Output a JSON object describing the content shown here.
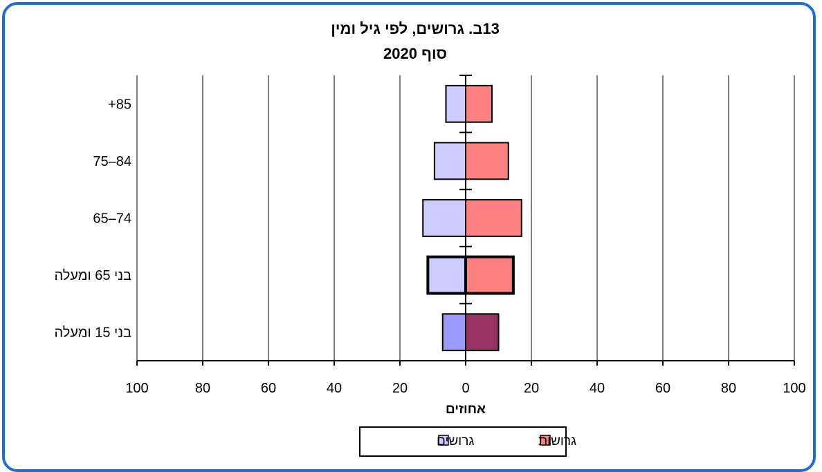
{
  "chart_data": {
    "type": "bar",
    "orientation": "horizontal",
    "title": "13ב. גרושים, לפי גיל ומין",
    "subtitle": "סוף 2020",
    "xlabel": "אחוזים",
    "xlim": [
      -100,
      100
    ],
    "x_tick_labels": [
      "100",
      "80",
      "60",
      "40",
      "20",
      "0",
      "20",
      "40",
      "60",
      "80",
      "100"
    ],
    "grid": true,
    "legend_position": "bottom",
    "categories": [
      "+85",
      "75–84",
      "65–74",
      "בני 65 ומעלה",
      "בני 15 ומעלה"
    ],
    "series": [
      {
        "name": "גרושים",
        "side": "left",
        "color": "#ccccff",
        "values": [
          6,
          9.5,
          13,
          11.5,
          7
        ]
      },
      {
        "name": "גרושות",
        "side": "right",
        "color": "#ff8080",
        "values": [
          8,
          13,
          17,
          14.5,
          10
        ]
      }
    ],
    "highlight": {
      "bold_outline_category": "בני 65 ומעלה",
      "dark_fill_category": "בני 15 ומעלה",
      "dark_fill_colors": {
        "גרושים": "#9999ff",
        "גרושות": "#993366"
      }
    }
  }
}
